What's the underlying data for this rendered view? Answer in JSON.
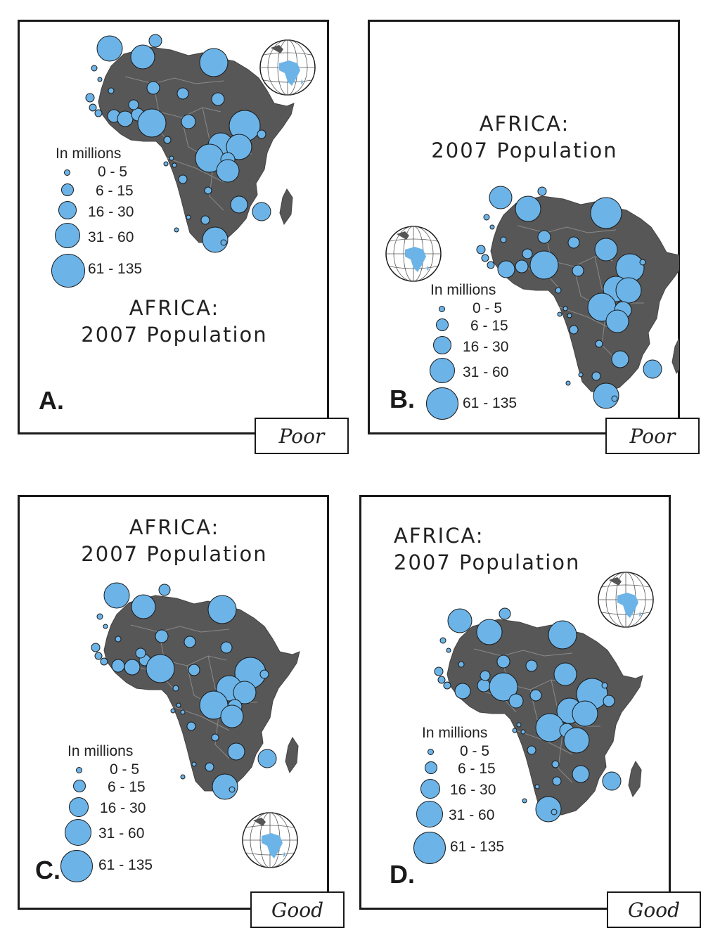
{
  "panels": [
    {
      "title_line1": "AFRICA:",
      "title_line2": "2007 Population",
      "legend_heading": "In millions",
      "legend_classes": [
        "0 - 5",
        "6 - 15",
        "16 - 30",
        "31 - 60",
        "61 - 135"
      ],
      "letter": "A.",
      "verdict": "Poor"
    },
    {
      "title_line1": "AFRICA:",
      "title_line2": "2007 Population",
      "legend_heading": "In millions",
      "legend_classes": [
        "0 - 5",
        "6 - 15",
        "16 - 30",
        "31 - 60",
        "61 - 135"
      ],
      "letter": "B.",
      "verdict": "Poor"
    },
    {
      "title_line1": "AFRICA:",
      "title_line2": "2007 Population",
      "legend_heading": "In millions",
      "legend_classes": [
        "0 - 5",
        "6 - 15",
        "16 - 30",
        "31 - 60",
        "61 - 135"
      ],
      "letter": "C.",
      "verdict": "Good"
    },
    {
      "title_line1": "AFRICA:",
      "title_line2": "2007 Population",
      "legend_heading": "In millions",
      "legend_classes": [
        "0 - 5",
        "6 - 15",
        "16 - 30",
        "31 - 60",
        "61 - 135"
      ],
      "letter": "D.",
      "verdict": "Good"
    }
  ],
  "colors": {
    "land": "#575757",
    "symbol_fill": "#6cb4e8",
    "border": "#1a1a1a"
  },
  "icons": [
    "globe-icon",
    "africa-map"
  ]
}
